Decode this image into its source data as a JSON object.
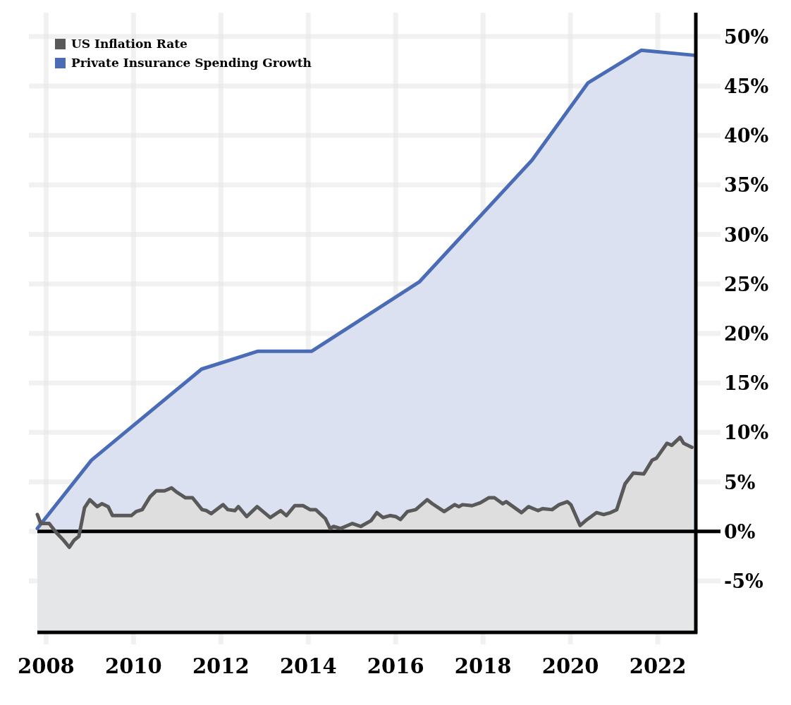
{
  "chart_data": {
    "type": "area",
    "xlim": [
      2007.8,
      2022.87
    ],
    "xticks": [
      2008,
      2010,
      2012,
      2014,
      2016,
      2018,
      2020,
      2022
    ],
    "ylim": [
      -10.2,
      52.4
    ],
    "yticks": [
      {
        "value": -5,
        "label": "-5%"
      },
      {
        "value": 0,
        "label": "0%"
      },
      {
        "value": 5,
        "label": "5%"
      },
      {
        "value": 10,
        "label": "10%"
      },
      {
        "value": 15,
        "label": "15%"
      },
      {
        "value": 20,
        "label": "20%"
      },
      {
        "value": 25,
        "label": "25%"
      },
      {
        "value": 30,
        "label": "30%"
      },
      {
        "value": 35,
        "label": "35%"
      },
      {
        "value": 40,
        "label": "40%"
      },
      {
        "value": 45,
        "label": "45%"
      },
      {
        "value": 50,
        "label": "50%"
      }
    ],
    "grid": true,
    "legend": "top left",
    "ref_lines": [
      {
        "axis": "y",
        "value": 0,
        "color": "#000000"
      }
    ],
    "bands": [
      {
        "axis": "y",
        "from": -10.2,
        "to": 0,
        "color": "#e5e6e8"
      }
    ],
    "series": [
      {
        "name": "Private Insurance Spending Growth",
        "color": "#4a6bb5",
        "x": [
          2007.8,
          2009.04,
          2011.56,
          2012.85,
          2014.08,
          2016.54,
          2019.12,
          2020.4,
          2021.62,
          2022.83
        ],
        "values": [
          0.3,
          7.2,
          16.4,
          18.2,
          18.2,
          25.2,
          37.5,
          45.3,
          48.6,
          48.1
        ]
      },
      {
        "name": "US Inflation Rate",
        "color": "#595959",
        "x": [
          2007.8,
          2007.88,
          2008.07,
          2008.23,
          2008.4,
          2008.53,
          2008.64,
          2008.75,
          2008.88,
          2009.0,
          2009.17,
          2009.28,
          2009.42,
          2009.52,
          2009.69,
          2009.95,
          2010.06,
          2010.2,
          2010.38,
          2010.52,
          2010.71,
          2010.87,
          2010.98,
          2011.19,
          2011.35,
          2011.57,
          2011.67,
          2011.78,
          2012.05,
          2012.16,
          2012.32,
          2012.4,
          2012.59,
          2012.83,
          2013.13,
          2013.37,
          2013.5,
          2013.69,
          2013.88,
          2014.04,
          2014.17,
          2014.39,
          2014.5,
          2014.58,
          2014.74,
          2014.85,
          2015.01,
          2015.2,
          2015.44,
          2015.57,
          2015.71,
          2015.87,
          2016.0,
          2016.11,
          2016.27,
          2016.46,
          2016.72,
          2016.84,
          2017.11,
          2017.35,
          2017.45,
          2017.53,
          2017.75,
          2017.94,
          2018.13,
          2018.26,
          2018.45,
          2018.53,
          2018.88,
          2019.04,
          2019.26,
          2019.36,
          2019.58,
          2019.74,
          2019.93,
          2020.01,
          2020.22,
          2020.38,
          2020.6,
          2020.76,
          2020.92,
          2021.06,
          2021.25,
          2021.44,
          2021.68,
          2021.87,
          2021.97,
          2022.21,
          2022.32,
          2022.51,
          2022.59,
          2022.78
        ],
        "values": [
          1.7,
          0.8,
          0.8,
          -0.1,
          -0.9,
          -1.6,
          -0.9,
          -0.5,
          2.4,
          3.2,
          2.5,
          2.8,
          2.5,
          1.6,
          1.6,
          1.6,
          2.0,
          2.2,
          3.5,
          4.1,
          4.1,
          4.4,
          4.0,
          3.4,
          3.4,
          2.2,
          2.1,
          1.8,
          2.7,
          2.2,
          2.1,
          2.5,
          1.5,
          2.5,
          1.4,
          2.1,
          1.6,
          2.6,
          2.6,
          2.2,
          2.2,
          1.3,
          0.3,
          0.5,
          0.3,
          0.5,
          0.8,
          0.5,
          1.1,
          1.9,
          1.4,
          1.6,
          1.5,
          1.2,
          2.0,
          2.2,
          3.2,
          2.8,
          2.0,
          2.7,
          2.5,
          2.7,
          2.6,
          2.9,
          3.4,
          3.4,
          2.8,
          3.0,
          1.9,
          2.5,
          2.1,
          2.3,
          2.2,
          2.7,
          3.0,
          2.7,
          0.6,
          1.2,
          1.9,
          1.7,
          1.9,
          2.2,
          4.8,
          5.9,
          5.8,
          7.2,
          7.4,
          8.9,
          8.7,
          9.5,
          8.9,
          8.5
        ]
      }
    ]
  }
}
